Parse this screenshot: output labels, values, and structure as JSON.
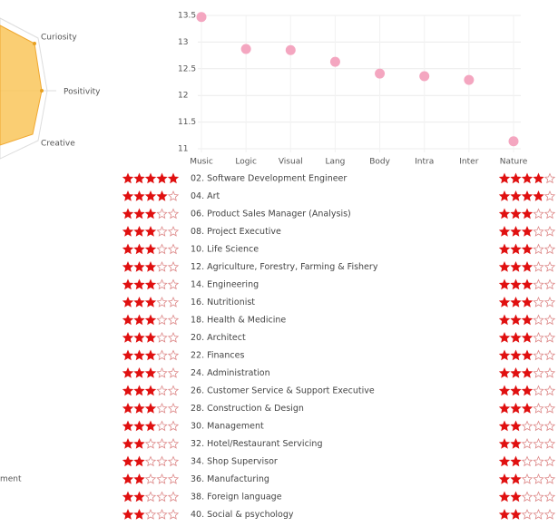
{
  "radar": {
    "labels": [
      "Curiosity",
      "Positivity",
      "Creative"
    ]
  },
  "side_label": "ment",
  "chart_data": {
    "type": "scatter",
    "categories": [
      "Music",
      "Logic",
      "Visual",
      "Lang",
      "Body",
      "Intra",
      "Inter",
      "Nature"
    ],
    "values": [
      13.47,
      12.87,
      12.85,
      12.63,
      12.41,
      12.36,
      12.29,
      11.14
    ],
    "color": "#f4a6c0",
    "ylim": [
      11.0,
      13.5
    ],
    "yticks": [
      11.0,
      11.5,
      12.0,
      12.5,
      13.0,
      13.5
    ],
    "grid": true
  },
  "list": {
    "rows": [
      {
        "label": "02. Software Development Engineer",
        "left": 5,
        "right": 4
      },
      {
        "label": "04. Art",
        "left": 4,
        "right": 4
      },
      {
        "label": "06. Product Sales Manager (Analysis)",
        "left": 3,
        "right": 3
      },
      {
        "label": "08. Project Executive",
        "left": 3,
        "right": 3
      },
      {
        "label": "10. Life Science",
        "left": 3,
        "right": 3
      },
      {
        "label": "12. Agriculture, Forestry, Farming & Fishery",
        "left": 3,
        "right": 3
      },
      {
        "label": "14. Engineering",
        "left": 3,
        "right": 3
      },
      {
        "label": "16. Nutritionist",
        "left": 3,
        "right": 3
      },
      {
        "label": "18. Health & Medicine",
        "left": 3,
        "right": 3
      },
      {
        "label": "20. Architect",
        "left": 3,
        "right": 3
      },
      {
        "label": "22. Finances",
        "left": 3,
        "right": 3
      },
      {
        "label": "24. Administration",
        "left": 3,
        "right": 3
      },
      {
        "label": "26. Customer Service & Support Executive",
        "left": 3,
        "right": 3
      },
      {
        "label": "28. Construction & Design",
        "left": 3,
        "right": 3
      },
      {
        "label": "30. Management",
        "left": 3,
        "right": 2
      },
      {
        "label": "32. Hotel/Restaurant Servicing",
        "left": 2,
        "right": 2
      },
      {
        "label": "34. Shop Supervisor",
        "left": 2,
        "right": 2
      },
      {
        "label": "36. Manufacturing",
        "left": 2,
        "right": 2
      },
      {
        "label": "38. Foreign language",
        "left": 2,
        "right": 2
      },
      {
        "label": "40. Social & psychology",
        "left": 2,
        "right": 2
      }
    ]
  }
}
